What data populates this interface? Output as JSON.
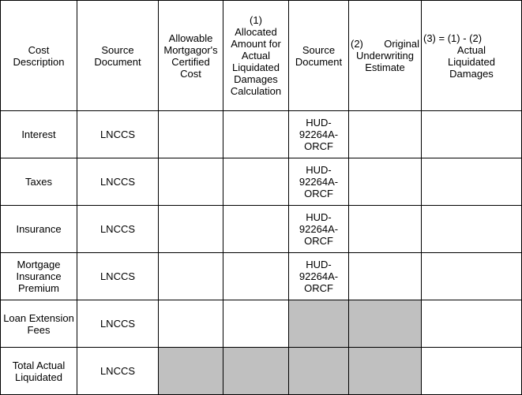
{
  "headers": {
    "cost_description": "Cost Description",
    "source_document_1": "Source Document",
    "allowable_cost": "Allowable Mortgagor's Certified Cost",
    "allocated_num": "(1)",
    "allocated_text": "Allocated Amount for Actual Liquidated Damages Calculation",
    "source_document_2": "Source Document",
    "original_num": "(2)",
    "original_word": "Original",
    "original_text": "Underwriting Estimate",
    "col3_line1": "(3) = (1) - (2)",
    "col3_line2": "Actual",
    "col3_line3": "Liquidated",
    "col3_line4": "Damages"
  },
  "rows": [
    {
      "description": "Interest",
      "source": "LNCCS",
      "source2": "HUD-92264A-ORCF"
    },
    {
      "description": "Taxes",
      "source": "LNCCS",
      "source2": "HUD-92264A-ORCF"
    },
    {
      "description": "Insurance",
      "source": "LNCCS",
      "source2": "HUD-92264A-ORCF"
    },
    {
      "description": "Mortgage Insurance Premium",
      "source": "LNCCS",
      "source2": "HUD-92264A-ORCF"
    },
    {
      "description": "Loan Extension Fees",
      "source": "LNCCS",
      "source2": ""
    },
    {
      "description": "Total Actual Liquidated",
      "source": "LNCCS",
      "source2": ""
    }
  ]
}
